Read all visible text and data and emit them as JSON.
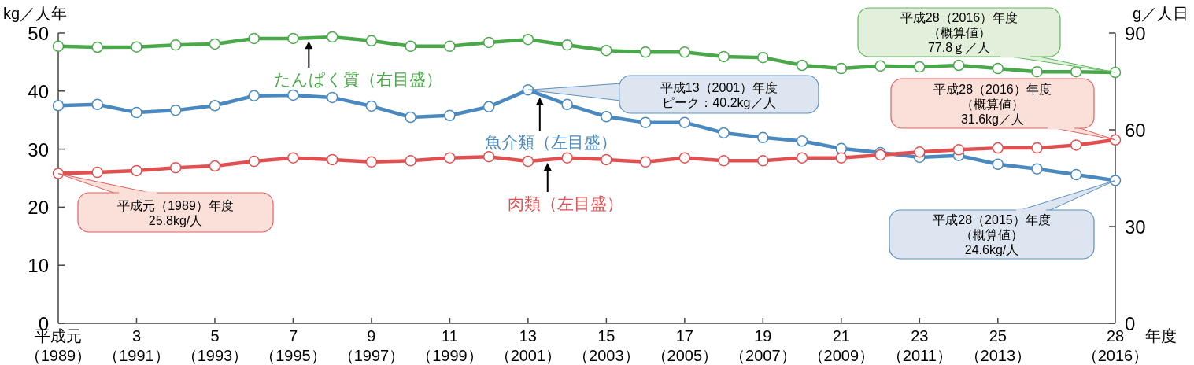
{
  "chart_data": {
    "type": "line",
    "ylabel": "kg／人年",
    "y2label": "g／人日",
    "xlabel": "年度",
    "categories": [
      "平成元（1989）",
      null,
      "3（1991）",
      null,
      "5（1993）",
      null,
      "7（1995）",
      null,
      "9（1997）",
      null,
      "11（1999）",
      null,
      "13（2001）",
      null,
      "15（2003）",
      null,
      "17（2005）",
      null,
      "19（2007）",
      null,
      "21（2009）",
      null,
      "23（2011）",
      null,
      "25（2013）",
      null,
      null,
      "28（2016）"
    ],
    "ylim": [
      0,
      50
    ],
    "yticks": [
      0,
      10,
      20,
      30,
      40,
      50
    ],
    "y2lim": [
      0,
      90
    ],
    "y2ticks": [
      0,
      30,
      60,
      90
    ],
    "marker": "circle",
    "line_style": "solid",
    "legend": false,
    "grid": false,
    "series": [
      {
        "name": "たんぱく質（右目盛）",
        "color": "#4aa84a",
        "axis": "y2",
        "values": [
          85.9,
          85.6,
          85.7,
          86.3,
          86.6,
          88.3,
          88.3,
          88.8,
          87.6,
          85.9,
          85.9,
          87.1,
          88.0,
          86.3,
          84.6,
          84.1,
          84.1,
          82.7,
          82.4,
          80.0,
          79.0,
          79.8,
          79.5,
          80.0,
          79.0,
          78.0,
          78.0,
          77.8
        ]
      },
      {
        "name": "魚介類（左目盛）",
        "color": "#4a89bf",
        "values": [
          37.5,
          37.7,
          36.3,
          36.7,
          37.5,
          39.2,
          39.3,
          38.9,
          37.4,
          35.5,
          35.8,
          37.3,
          40.2,
          37.7,
          35.6,
          34.6,
          34.6,
          32.8,
          32.0,
          31.4,
          30.1,
          29.4,
          28.6,
          28.9,
          27.4,
          26.6,
          25.6,
          24.6
        ]
      },
      {
        "name": "肉類（左目盛）",
        "color": "#e05050",
        "values": [
          25.8,
          26.0,
          26.3,
          26.8,
          27.1,
          27.9,
          28.5,
          28.2,
          27.8,
          28.0,
          28.5,
          28.7,
          27.9,
          28.5,
          28.2,
          27.8,
          28.5,
          28.0,
          28.0,
          28.5,
          28.5,
          29.0,
          29.5,
          29.9,
          30.2,
          30.2,
          30.7,
          31.6
        ]
      }
    ],
    "annotations": [
      "平成元（1989）年度",
      "25.8kg/人",
      "平成13（2001）年度",
      "ピーク：40.2kg／人",
      "平成28（2016）年度",
      "（概算値）",
      "77.8ｇ／人",
      "平成28（2016）年度",
      "（概算値）",
      "31.6kg／人",
      "平成28（2015）年度",
      "（概算値）",
      "24.6kg/人"
    ]
  }
}
